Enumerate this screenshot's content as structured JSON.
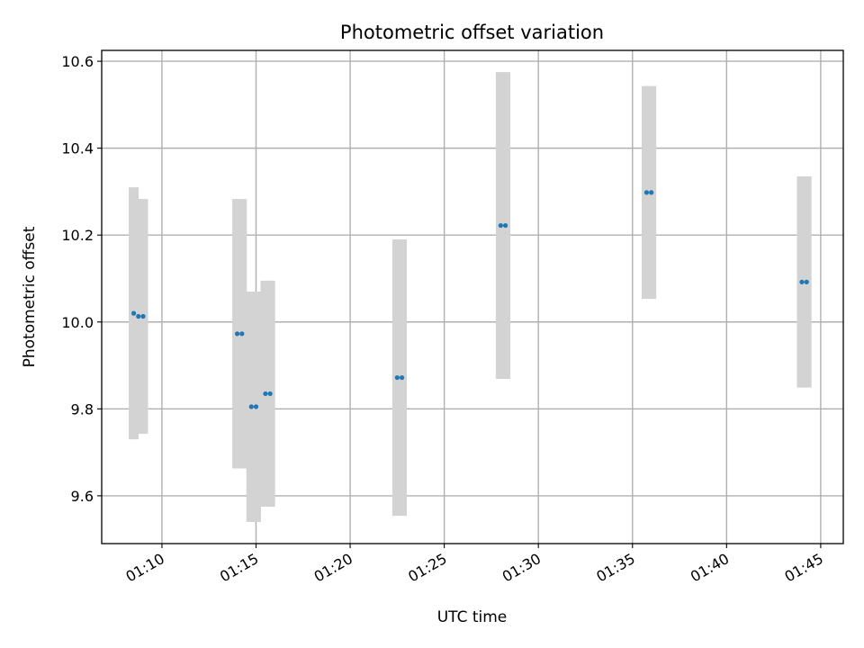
{
  "chart_data": {
    "type": "scatter",
    "title": "Photometric offset variation",
    "xlabel": "UTC time",
    "ylabel": "Photometric offset",
    "xlim": [
      "01:06:48",
      "01:46:12"
    ],
    "ylim": [
      9.49,
      10.625
    ],
    "x_ticks": [
      "01:10",
      "01:15",
      "01:20",
      "01:25",
      "01:30",
      "01:35",
      "01:40",
      "01:45"
    ],
    "y_ticks": [
      "9.6",
      "9.8",
      "10.0",
      "10.2",
      "10.4",
      "10.6"
    ],
    "grid": true,
    "errorbar_color": "#d3d3d3",
    "marker_color": "#1f77b4",
    "series": [
      {
        "points": [
          {
            "x": "01:08:30",
            "y": 10.02,
            "yerr": 0.29
          },
          {
            "x": "01:08:45",
            "y": 10.013,
            "yerr": 0.27
          },
          {
            "x": "01:09:00",
            "y": 10.013,
            "yerr": 0.27
          },
          {
            "x": "01:14:00",
            "y": 9.973,
            "yerr": 0.31
          },
          {
            "x": "01:14:15",
            "y": 9.973,
            "yerr": 0.31
          },
          {
            "x": "01:14:45",
            "y": 9.805,
            "yerr": 0.265
          },
          {
            "x": "01:15:00",
            "y": 9.805,
            "yerr": 0.265
          },
          {
            "x": "01:15:30",
            "y": 9.835,
            "yerr": 0.26
          },
          {
            "x": "01:15:45",
            "y": 9.835,
            "yerr": 0.26
          },
          {
            "x": "01:22:30",
            "y": 9.872,
            "yerr": 0.318
          },
          {
            "x": "01:22:45",
            "y": 9.872,
            "yerr": 0.318
          },
          {
            "x": "01:28:00",
            "y": 10.222,
            "yerr": 0.353
          },
          {
            "x": "01:28:15",
            "y": 10.222,
            "yerr": 0.353
          },
          {
            "x": "01:35:45",
            "y": 10.298,
            "yerr": 0.245
          },
          {
            "x": "01:36:00",
            "y": 10.298,
            "yerr": 0.245
          },
          {
            "x": "01:44:00",
            "y": 10.092,
            "yerr": 0.243
          },
          {
            "x": "01:44:15",
            "y": 10.092,
            "yerr": 0.243
          }
        ]
      }
    ]
  }
}
